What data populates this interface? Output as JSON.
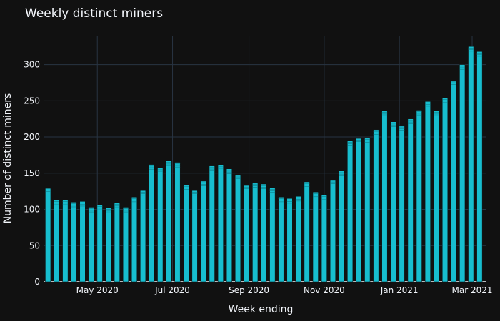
{
  "chart_data": {
    "type": "bar",
    "title": "Weekly distinct miners",
    "xlabel": "Week ending",
    "ylabel": "Number of distinct miners",
    "ylim": [
      0,
      340
    ],
    "yticks": [
      0,
      50,
      100,
      150,
      200,
      250,
      300
    ],
    "grid": true,
    "xtick_labels": [
      "May 2020",
      "Jul 2020",
      "Sep 2020",
      "Nov 2020",
      "Jan 2021",
      "Mar 2021"
    ],
    "x": [
      "2020-03-22",
      "2020-03-29",
      "2020-04-05",
      "2020-04-12",
      "2020-04-19",
      "2020-04-26",
      "2020-05-03",
      "2020-05-10",
      "2020-05-17",
      "2020-05-24",
      "2020-05-31",
      "2020-06-07",
      "2020-06-14",
      "2020-06-21",
      "2020-06-28",
      "2020-07-05",
      "2020-07-12",
      "2020-07-19",
      "2020-07-26",
      "2020-08-02",
      "2020-08-09",
      "2020-08-16",
      "2020-08-23",
      "2020-08-30",
      "2020-09-06",
      "2020-09-13",
      "2020-09-20",
      "2020-09-27",
      "2020-10-04",
      "2020-10-11",
      "2020-10-18",
      "2020-10-25",
      "2020-11-01",
      "2020-11-08",
      "2020-11-15",
      "2020-11-22",
      "2020-11-29",
      "2020-12-06",
      "2020-12-13",
      "2020-12-20",
      "2020-12-27",
      "2021-01-03",
      "2021-01-10",
      "2021-01-17",
      "2021-01-24",
      "2021-01-31",
      "2021-02-07",
      "2021-02-14",
      "2021-02-21",
      "2021-02-28",
      "2021-03-07"
    ],
    "values": [
      129,
      113,
      113,
      110,
      111,
      103,
      106,
      102,
      109,
      103,
      117,
      126,
      162,
      157,
      167,
      165,
      134,
      126,
      139,
      160,
      161,
      156,
      147,
      133,
      137,
      135,
      130,
      117,
      115,
      118,
      138,
      124,
      120,
      140,
      153,
      195,
      198,
      199,
      210,
      236,
      221,
      216,
      225,
      237,
      249,
      236,
      254,
      277,
      300,
      325,
      318
    ],
    "colors": {
      "bar": "#17becf",
      "background": "#111111",
      "grid": "#283442",
      "text": "#f2f5fa"
    }
  }
}
